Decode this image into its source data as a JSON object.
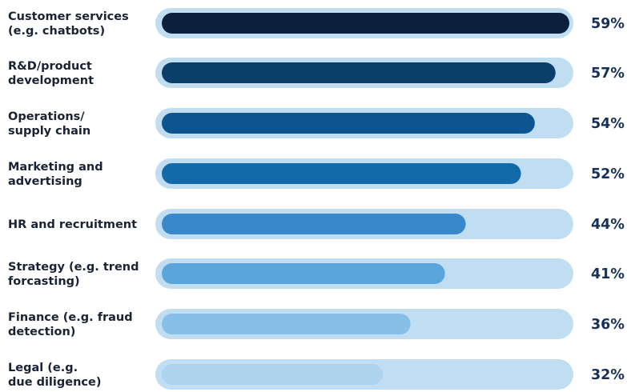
{
  "chart_data": {
    "type": "bar",
    "orientation": "horizontal",
    "categories": [
      [
        "Customer services",
        "(e.g. chatbots)"
      ],
      [
        "R&D/product",
        "development"
      ],
      [
        "Operations/",
        "supply chain"
      ],
      [
        "Marketing and",
        "advertising"
      ],
      [
        "HR and recruitment"
      ],
      [
        "Strategy (e.g. trend",
        "forcasting)"
      ],
      [
        "Finance (e.g. fraud",
        "detection)"
      ],
      [
        "Legal (e.g.",
        "due diligence)"
      ]
    ],
    "values": [
      59,
      57,
      54,
      52,
      44,
      41,
      36,
      32
    ],
    "value_labels": [
      "59%",
      "57%",
      "54%",
      "52%",
      "44%",
      "41%",
      "36%",
      "32%"
    ],
    "unit": "%",
    "bar_colors": [
      "#0c1f3d",
      "#0a3f69",
      "#0d5590",
      "#136aa8",
      "#3888cb",
      "#5aa5dc",
      "#86bfe8",
      "#aed3ef"
    ],
    "track_color": "#c0ddf2",
    "title": "",
    "xlabel": "",
    "ylabel": "",
    "legend": "none",
    "grid": false
  }
}
